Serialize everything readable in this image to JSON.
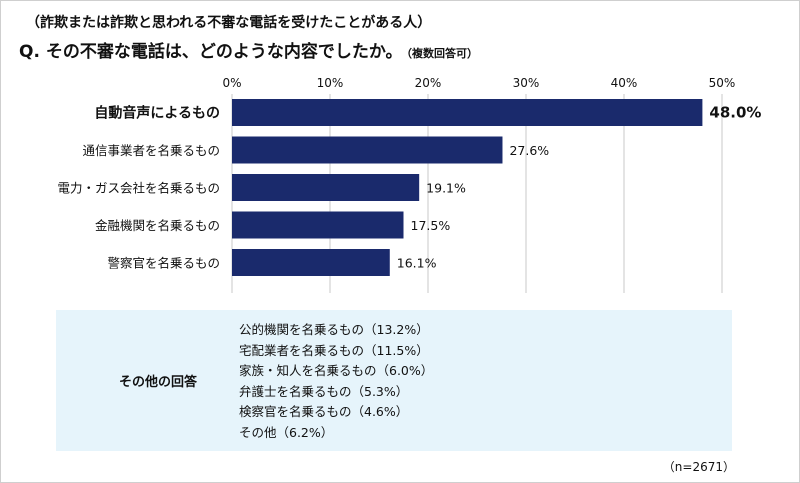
{
  "header": {
    "subtitle": "（詐欺または詐欺と思われる不審な電話を受けたことがある人）",
    "title": "Q. その不審な電話は、どのような内容でしたか。",
    "title_note": "（複数回答可）"
  },
  "chart_data": {
    "type": "bar",
    "orientation": "horizontal",
    "categories": [
      "自動音声によるもの",
      "通信事業者を名乗るもの",
      "電力・ガス会社を名乗るもの",
      "金融機関を名乗るもの",
      "警察官を名乗るもの"
    ],
    "values": [
      48.0,
      27.6,
      19.1,
      17.5,
      16.1
    ],
    "value_labels": [
      "48.0%",
      "27.6%",
      "19.1%",
      "17.5%",
      "16.1%"
    ],
    "xlim": [
      0,
      50
    ],
    "xticks": [
      0,
      10,
      20,
      30,
      40,
      50
    ],
    "xtick_labels": [
      "0%",
      "10%",
      "20%",
      "30%",
      "40%",
      "50%"
    ],
    "highlight_index": 0,
    "bar_color": "#1a2a6c",
    "grid_color": "#c9c9c9",
    "grid": true,
    "xaxis_position": "top"
  },
  "other": {
    "label": "その他の回答",
    "items": [
      "公的機関を名乗るもの（13.2%）",
      "宅配業者を名乗るもの（11.5%）",
      "家族・知人を名乗るもの（6.0%）",
      "弁護士を名乗るもの（5.3%）",
      "検察官を名乗るもの（4.6%）",
      "その他（6.2%）"
    ],
    "background": "#e6f4fb"
  },
  "footer": {
    "n_note": "（n=2671）"
  }
}
